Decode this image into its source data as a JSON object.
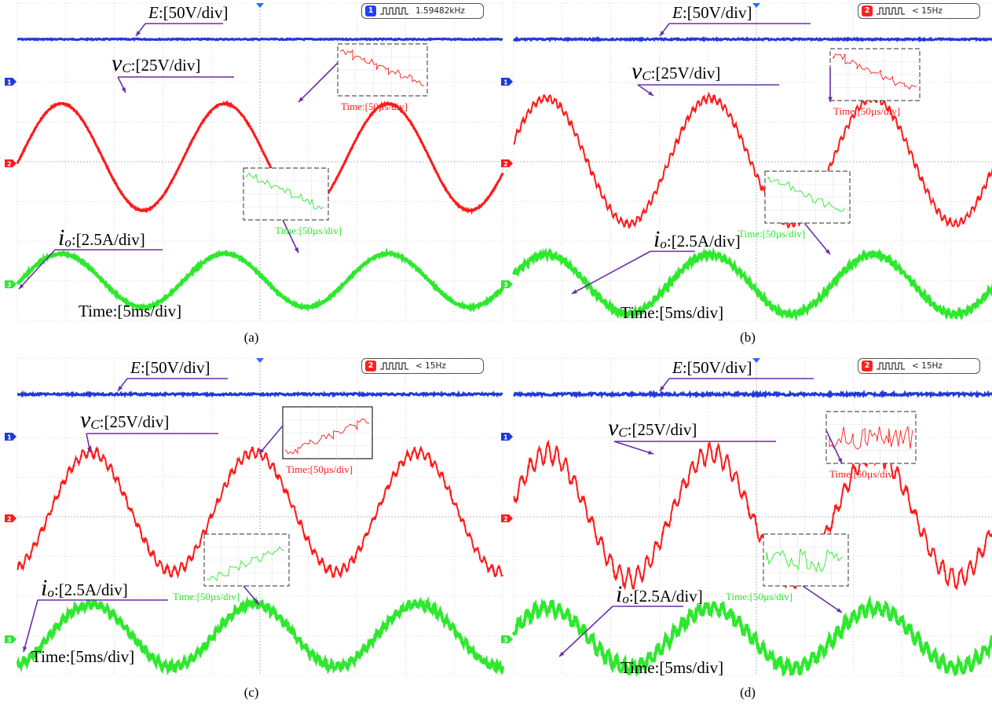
{
  "panels": [
    {
      "caption": "(a)",
      "trigger_channel": "1",
      "trigger_color": "#2040ff",
      "freq_text": "1.59482kHz",
      "e_label": "[50V/div]",
      "vc_label": "[25V/div]",
      "io_label": "[2.5A/div]",
      "time_label": "Time:[5ms/div]",
      "inset_time_label": "Time:[50µs/div]",
      "ripple": 0
    },
    {
      "caption": "(b)",
      "trigger_channel": "2",
      "trigger_color": "#ff2020",
      "freq_text": "< 15Hz",
      "e_label": "[50V/div]",
      "vc_label": "[25V/div]",
      "io_label": "[2.5A/div]",
      "time_label": "Time:[5ms/div]",
      "inset_time_label": "Time:[50µs/div]",
      "ripple": 1
    },
    {
      "caption": "(c)",
      "trigger_channel": "2",
      "trigger_color": "#ff2020",
      "freq_text": "< 15Hz",
      "e_label": "[50V/div]",
      "vc_label": "[25V/div]",
      "io_label": "[2.5A/div]",
      "time_label": "Time:[5ms/div]",
      "inset_time_label": "Time:[50µs/div]",
      "ripple": 2
    },
    {
      "caption": "(d)",
      "trigger_channel": "2",
      "trigger_color": "#ff2020",
      "freq_text": "< 15Hz",
      "e_label": "[50V/div]",
      "vc_label": "[25V/div]",
      "io_label": "[2.5A/div]",
      "time_label": "Time:[5ms/div]",
      "inset_time_label": "Time:[50µs/div]",
      "ripple": 3
    }
  ],
  "symbols": {
    "e": "E",
    "vc_main": "v",
    "vc_sub": "C",
    "io_main": "i",
    "io_sub": "o",
    "colon": ":"
  },
  "colors": {
    "E": "#1f3ad6",
    "vc": "#ff1a1a",
    "io": "#2ee82e",
    "grid": "#c8c8c8",
    "annotation": "#6a2fa8"
  },
  "chart_data": [
    {
      "type": "line",
      "panel": "a",
      "series": [
        {
          "name": "E",
          "unit": "V/div",
          "scale": 50
        },
        {
          "name": "vC",
          "unit": "V/div",
          "scale": 25
        },
        {
          "name": "io",
          "unit": "A/div",
          "scale": 2.5
        }
      ],
      "xscale": "5ms/div"
    },
    {
      "type": "line",
      "panel": "b",
      "series": [
        {
          "name": "E",
          "unit": "V/div",
          "scale": 50
        },
        {
          "name": "vC",
          "unit": "V/div",
          "scale": 25
        },
        {
          "name": "io",
          "unit": "A/div",
          "scale": 2.5
        }
      ],
      "xscale": "5ms/div"
    },
    {
      "type": "line",
      "panel": "c",
      "series": [
        {
          "name": "E",
          "unit": "V/div",
          "scale": 50
        },
        {
          "name": "vC",
          "unit": "V/div",
          "scale": 25
        },
        {
          "name": "io",
          "unit": "A/div",
          "scale": 2.5
        }
      ],
      "xscale": "5ms/div"
    },
    {
      "type": "line",
      "panel": "d",
      "series": [
        {
          "name": "E",
          "unit": "V/div",
          "scale": 50
        },
        {
          "name": "vC",
          "unit": "V/div",
          "scale": 25
        },
        {
          "name": "io",
          "unit": "A/div",
          "scale": 2.5
        }
      ],
      "xscale": "5ms/div"
    }
  ]
}
